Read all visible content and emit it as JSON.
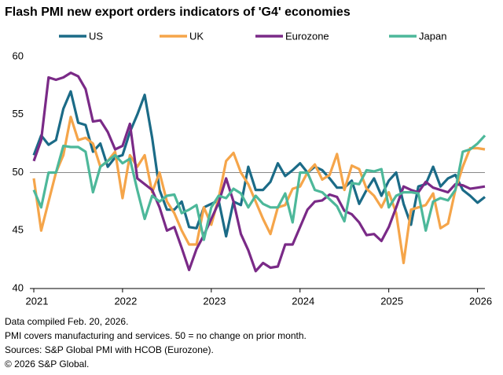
{
  "chart_data": {
    "type": "line",
    "title": "Flash PMI new export orders indicators of 'G4' economies",
    "categories": [
      "2021",
      null,
      null,
      null,
      null,
      null,
      null,
      null,
      null,
      null,
      null,
      null,
      "2022",
      null,
      null,
      null,
      null,
      null,
      null,
      null,
      null,
      null,
      null,
      null,
      "2023",
      null,
      null,
      null,
      null,
      null,
      null,
      null,
      null,
      null,
      null,
      null,
      "2024",
      null,
      null,
      null,
      null,
      null,
      null,
      null,
      null,
      null,
      null,
      null,
      "2025",
      null,
      null,
      null,
      null,
      null,
      null,
      null,
      null,
      null,
      null,
      null,
      "2026",
      null
    ],
    "series": [
      {
        "name": "US",
        "color": "#1b6b87",
        "values": [
          51.5,
          53.2,
          52.4,
          52.8,
          55.5,
          57.0,
          54.3,
          54.1,
          51.8,
          52.5,
          50.5,
          51.3,
          51.5,
          53.5,
          55.0,
          56.7,
          53.0,
          48.5,
          46.8,
          46.8,
          47.5,
          45.3,
          45.2,
          47.0,
          47.3,
          47.6,
          44.5,
          47.5,
          47.2,
          50.5,
          48.5,
          48.5,
          49.2,
          50.8,
          49.7,
          50.2,
          50.8,
          50.0,
          50.5,
          50.2,
          49.5,
          48.7,
          48.7,
          49.3,
          47.3,
          48.5,
          49.5,
          48.0,
          49.3,
          50.0,
          47.3,
          45.5,
          48.8,
          49.0,
          50.5,
          48.8,
          49.5,
          49.8,
          48.5,
          48.0,
          47.4,
          47.9
        ]
      },
      {
        "name": "UK",
        "color": "#f5a54a",
        "values": [
          49.5,
          45.0,
          47.5,
          50.0,
          51.5,
          54.8,
          52.8,
          53.0,
          52.5,
          50.5,
          51.0,
          51.8,
          47.8,
          51.5,
          50.5,
          51.5,
          48.3,
          50.0,
          47.5,
          46.5,
          45.0,
          43.8,
          43.8,
          47.0,
          45.5,
          47.8,
          51.0,
          51.7,
          50.0,
          49.0,
          47.5,
          46.0,
          44.7,
          47.0,
          47.2,
          48.6,
          48.8,
          50.0,
          50.7,
          49.4,
          49.8,
          51.6,
          48.5,
          50.6,
          50.3,
          48.6,
          48.0,
          47.0,
          48.3,
          46.5,
          42.2,
          46.8,
          47.0,
          47.2,
          48.2,
          45.2,
          45.6,
          48.5,
          50.5,
          52.1,
          52.1,
          52.0
        ]
      },
      {
        "name": "Eurozone",
        "color": "#7a2a87",
        "values": [
          51.0,
          52.8,
          58.2,
          58.0,
          58.2,
          58.6,
          58.3,
          57.2,
          54.4,
          54.5,
          53.5,
          52.0,
          52.3,
          54.2,
          49.5,
          49.0,
          48.5,
          47.0,
          45.0,
          45.3,
          43.5,
          41.6,
          43.4,
          44.6,
          46.0,
          47.4,
          49.5,
          47.5,
          44.7,
          43.3,
          41.5,
          42.2,
          41.8,
          41.9,
          43.8,
          43.8,
          45.3,
          46.8,
          47.5,
          47.6,
          48.1,
          47.9,
          46.7,
          46.4,
          45.7,
          44.6,
          44.7,
          44.1,
          45.3,
          47.0,
          48.8,
          48.5,
          48.3,
          49.2,
          48.7,
          48.5,
          48.3,
          49.0,
          48.9,
          48.6,
          48.7,
          48.8
        ]
      },
      {
        "name": "Japan",
        "color": "#4db89a",
        "values": [
          48.5,
          47.0,
          50.0,
          50.0,
          52.3,
          52.2,
          52.2,
          51.8,
          48.3,
          50.5,
          51.0,
          51.5,
          50.8,
          51.2,
          48.5,
          46.0,
          48.0,
          47.5,
          48.0,
          48.1,
          46.5,
          46.8,
          47.2,
          44.2,
          47.0,
          48.0,
          47.8,
          48.6,
          48.2,
          47.0,
          48.0,
          47.3,
          47.0,
          47.0,
          48.2,
          45.7,
          50.0,
          50.0,
          48.5,
          48.3,
          47.7,
          47.1,
          45.8,
          49.1,
          49.0,
          50.2,
          50.1,
          50.3,
          47.0,
          48.0,
          48.3,
          48.3,
          48.2,
          45.0,
          47.5,
          47.8,
          47.6,
          48.5,
          51.8,
          52.0,
          52.5,
          53.2
        ]
      }
    ],
    "ylim": [
      40,
      60
    ],
    "yticks": [
      40,
      45,
      50,
      55,
      60
    ],
    "reference_line": 50,
    "notes": [
      "Data compiled Feb. 20, 2026.",
      "PMI covers manufacturing and services. 50 = no change on prior month.",
      "Sources: S&P Global PMI with HCOB (Eurozone).",
      "© 2026 S&P Global."
    ]
  }
}
